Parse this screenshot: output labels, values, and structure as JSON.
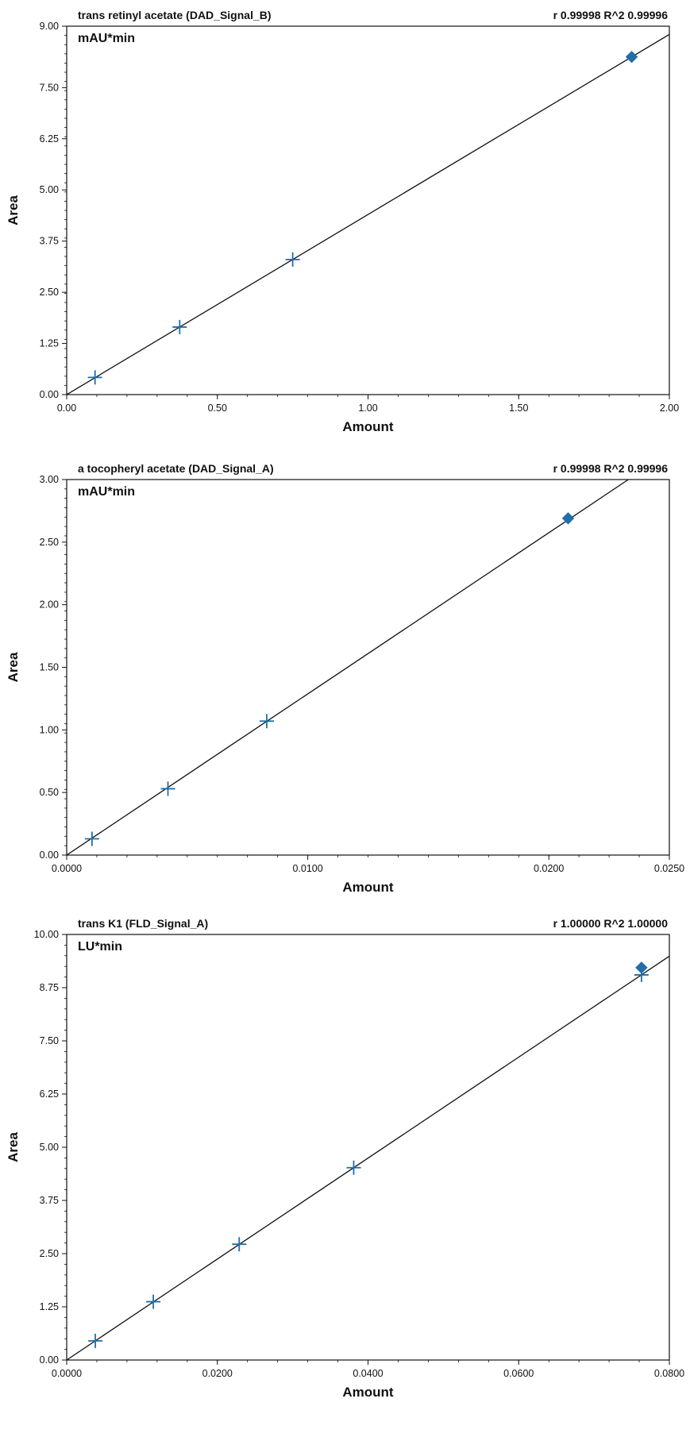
{
  "colors": {
    "marker": "#1f6fa8",
    "fit_line": "#111111",
    "frame": "#111111",
    "background": "#ffffff"
  },
  "chart_data": [
    {
      "type": "scatter",
      "title": "trans retinyl acetate (DAD_Signal_B)",
      "stat": "r 0.99998 R^2 0.99996",
      "unit_label": "mAU*min",
      "xlabel": "Amount",
      "ylabel": "Area",
      "xlim": [
        0,
        2.0
      ],
      "ylim": [
        0,
        9.0
      ],
      "xticks": [
        "0.00",
        "0.50",
        "1.00",
        "1.50",
        "2.00"
      ],
      "yticks": [
        "0.00",
        "1.25",
        "2.50",
        "3.75",
        "5.00",
        "6.25",
        "7.50",
        "9.00"
      ],
      "points": [
        {
          "x": 0.094,
          "y": 0.42,
          "marker": "plus"
        },
        {
          "x": 0.375,
          "y": 1.65,
          "marker": "plus"
        },
        {
          "x": 0.75,
          "y": 3.3,
          "marker": "plus"
        },
        {
          "x": 1.875,
          "y": 8.25,
          "marker": "diamond"
        }
      ],
      "fit_line": {
        "x": [
          0,
          2.0
        ],
        "y": [
          0.0,
          8.8
        ]
      },
      "grid": false,
      "legend": "none"
    },
    {
      "type": "scatter",
      "title": "a tocopheryl acetate (DAD_Signal_A)",
      "stat": "r 0.99998 R^2 0.99996",
      "unit_label": "mAU*min",
      "xlabel": "Amount",
      "ylabel": "Area",
      "xlim": [
        0,
        0.025
      ],
      "ylim": [
        0,
        3.0
      ],
      "xticks": [
        "0.0000",
        "0.0100",
        "0.0200",
        "0.0250"
      ],
      "yticks": [
        "0.00",
        "0.50",
        "1.00",
        "1.50",
        "2.00",
        "2.50",
        "3.00"
      ],
      "points": [
        {
          "x": 0.00105,
          "y": 0.13,
          "marker": "plus"
        },
        {
          "x": 0.0042,
          "y": 0.53,
          "marker": "plus"
        },
        {
          "x": 0.0083,
          "y": 1.07,
          "marker": "plus"
        },
        {
          "x": 0.0208,
          "y": 2.69,
          "marker": "diamond"
        }
      ],
      "fit_line": {
        "x": [
          0,
          0.0233
        ],
        "y": [
          0.0,
          3.0
        ]
      },
      "grid": false,
      "legend": "none"
    },
    {
      "type": "scatter",
      "title": "trans K1 (FLD_Signal_A)",
      "stat": "r 1.00000 R^2 1.00000",
      "unit_label": "LU*min",
      "xlabel": "Amount",
      "ylabel": "Area",
      "xlim": [
        0,
        0.08
      ],
      "ylim": [
        0,
        10.0
      ],
      "xticks": [
        "0.0000",
        "0.0200",
        "0.0400",
        "0.0600",
        "0.0800"
      ],
      "yticks": [
        "0.00",
        "1.25",
        "2.50",
        "3.75",
        "5.00",
        "6.25",
        "7.50",
        "8.75",
        "10.00"
      ],
      "points": [
        {
          "x": 0.0038,
          "y": 0.45,
          "marker": "plus"
        },
        {
          "x": 0.0115,
          "y": 1.37,
          "marker": "plus"
        },
        {
          "x": 0.0229,
          "y": 2.72,
          "marker": "plus"
        },
        {
          "x": 0.0381,
          "y": 4.52,
          "marker": "plus"
        },
        {
          "x": 0.0763,
          "y": 9.05,
          "marker": "plus"
        },
        {
          "x": 0.0763,
          "y": 9.22,
          "marker": "diamond"
        }
      ],
      "fit_line": {
        "x": [
          0,
          0.08
        ],
        "y": [
          0.0,
          9.49
        ]
      },
      "grid": false,
      "legend": "none"
    }
  ]
}
